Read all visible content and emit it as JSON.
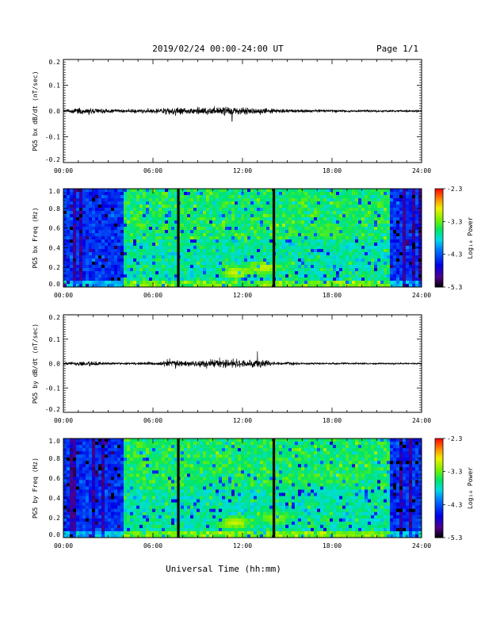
{
  "header": {
    "title": "2019/02/24  00:00-24:00 UT",
    "page": "Page 1/1"
  },
  "footer": {
    "xlabel": "Universal Time (hh:mm)"
  },
  "chart_data": [
    {
      "type": "line",
      "ylabel": "PG5 bx dB/dt (nT/sec)",
      "ylim": [
        -0.2,
        0.2
      ],
      "yticks": [
        "0.2",
        "0.1",
        "0.0",
        "-0.1",
        "-0.2"
      ],
      "xticks": [
        "00:00",
        "06:00",
        "12:00",
        "18:00",
        "24:00"
      ],
      "xlim_hours": [
        0,
        24
      ],
      "series": [
        {
          "values": [
            0.0
          ]
        }
      ],
      "envelope": [
        {
          "t": 0,
          "a": 0.004
        },
        {
          "t": 0.5,
          "a": 0.008
        },
        {
          "t": 1.2,
          "a": 0.012
        },
        {
          "t": 1.8,
          "a": 0.014
        },
        {
          "t": 2.5,
          "a": 0.008
        },
        {
          "t": 3.5,
          "a": 0.006
        },
        {
          "t": 4.2,
          "a": 0.007
        },
        {
          "t": 6.5,
          "a": 0.009
        },
        {
          "t": 7.2,
          "a": 0.014
        },
        {
          "t": 7.6,
          "a": 0.016
        },
        {
          "t": 8.2,
          "a": 0.012
        },
        {
          "t": 9.5,
          "a": 0.014
        },
        {
          "t": 10.5,
          "a": 0.015
        },
        {
          "t": 11.2,
          "a": 0.018
        },
        {
          "t": 12.0,
          "a": 0.014
        },
        {
          "t": 13.0,
          "a": 0.013
        },
        {
          "t": 14.2,
          "a": 0.009
        },
        {
          "t": 16,
          "a": 0.006
        },
        {
          "t": 18,
          "a": 0.005
        },
        {
          "t": 21,
          "a": 0.004
        },
        {
          "t": 24,
          "a": 0.004
        }
      ],
      "spikes": [
        {
          "t": 11.3,
          "v": -0.04
        }
      ]
    },
    {
      "type": "heatmap",
      "ylabel": "PG5 bx Freq (Hz)",
      "ylim": [
        0.0,
        1.0
      ],
      "yticks": [
        "1.0",
        "0.8",
        "0.6",
        "0.4",
        "0.2",
        "0.0"
      ],
      "xticks": [
        "00:00",
        "06:00",
        "12:00",
        "18:00",
        "24:00"
      ],
      "colorbar": {
        "label": "Log₁₀ Power",
        "ticks": [
          "-2.3",
          "-3.3",
          "-4.3",
          "-5.3"
        ],
        "range": [
          -5.3,
          -2.3
        ]
      },
      "gaps_hours": [
        7.7,
        14.1
      ],
      "quiet_intervals_hours": [
        [
          0,
          4.0
        ],
        [
          21.8,
          24
        ]
      ],
      "active_interval_hours": [
        4.0,
        21.8
      ],
      "enhancements": [
        {
          "t": 11.5,
          "f": 0.15,
          "level": -3.0
        },
        {
          "t": 13.5,
          "f": 0.2,
          "level": -3.0
        },
        {
          "t": 18.0,
          "f": 0.55,
          "level": -3.4
        }
      ]
    },
    {
      "type": "line",
      "ylabel": "PG5 by dB/dt (nT/sec)",
      "ylim": [
        -0.2,
        0.2
      ],
      "yticks": [
        "0.2",
        "0.1",
        "0.0",
        "-0.1",
        "-0.2"
      ],
      "xticks": [
        "00:00",
        "06:00",
        "12:00",
        "18:00",
        "24:00"
      ],
      "xlim_hours": [
        0,
        24
      ],
      "series": [
        {
          "values": [
            0.0
          ]
        }
      ],
      "envelope": [
        {
          "t": 0,
          "a": 0.003
        },
        {
          "t": 0.6,
          "a": 0.006
        },
        {
          "t": 1.3,
          "a": 0.012
        },
        {
          "t": 2.0,
          "a": 0.01
        },
        {
          "t": 3.0,
          "a": 0.005
        },
        {
          "t": 4.5,
          "a": 0.004
        },
        {
          "t": 6.5,
          "a": 0.008
        },
        {
          "t": 7.2,
          "a": 0.016
        },
        {
          "t": 8.2,
          "a": 0.01
        },
        {
          "t": 9.0,
          "a": 0.014
        },
        {
          "t": 10.0,
          "a": 0.016
        },
        {
          "t": 11.2,
          "a": 0.02
        },
        {
          "t": 12.2,
          "a": 0.012
        },
        {
          "t": 13.2,
          "a": 0.016
        },
        {
          "t": 14.0,
          "a": 0.008
        },
        {
          "t": 16,
          "a": 0.004
        },
        {
          "t": 20,
          "a": 0.003
        },
        {
          "t": 24,
          "a": 0.003
        }
      ],
      "spikes": [
        {
          "t": 13.0,
          "v": 0.05
        }
      ]
    },
    {
      "type": "heatmap",
      "ylabel": "PG5 by Freq (Hz)",
      "ylim": [
        0.0,
        1.0
      ],
      "yticks": [
        "1.0",
        "0.8",
        "0.6",
        "0.4",
        "0.2",
        "0.0"
      ],
      "xticks": [
        "00:00",
        "06:00",
        "12:00",
        "18:00",
        "24:00"
      ],
      "colorbar": {
        "label": "Log₁₀ Power",
        "ticks": [
          "-2.3",
          "-3.3",
          "-4.3",
          "-5.3"
        ],
        "range": [
          -5.3,
          -2.3
        ]
      },
      "gaps_hours": [
        7.7,
        14.1
      ],
      "quiet_intervals_hours": [
        [
          0,
          4.0
        ],
        [
          21.8,
          24
        ]
      ],
      "active_interval_hours": [
        4.0,
        21.8
      ],
      "enhancements": [
        {
          "t": 11.5,
          "f": 0.15,
          "level": -3.0
        },
        {
          "t": 14.2,
          "f": 0.2,
          "level": -3.2
        },
        {
          "t": 18.0,
          "f": 0.45,
          "level": -3.8
        }
      ]
    }
  ]
}
